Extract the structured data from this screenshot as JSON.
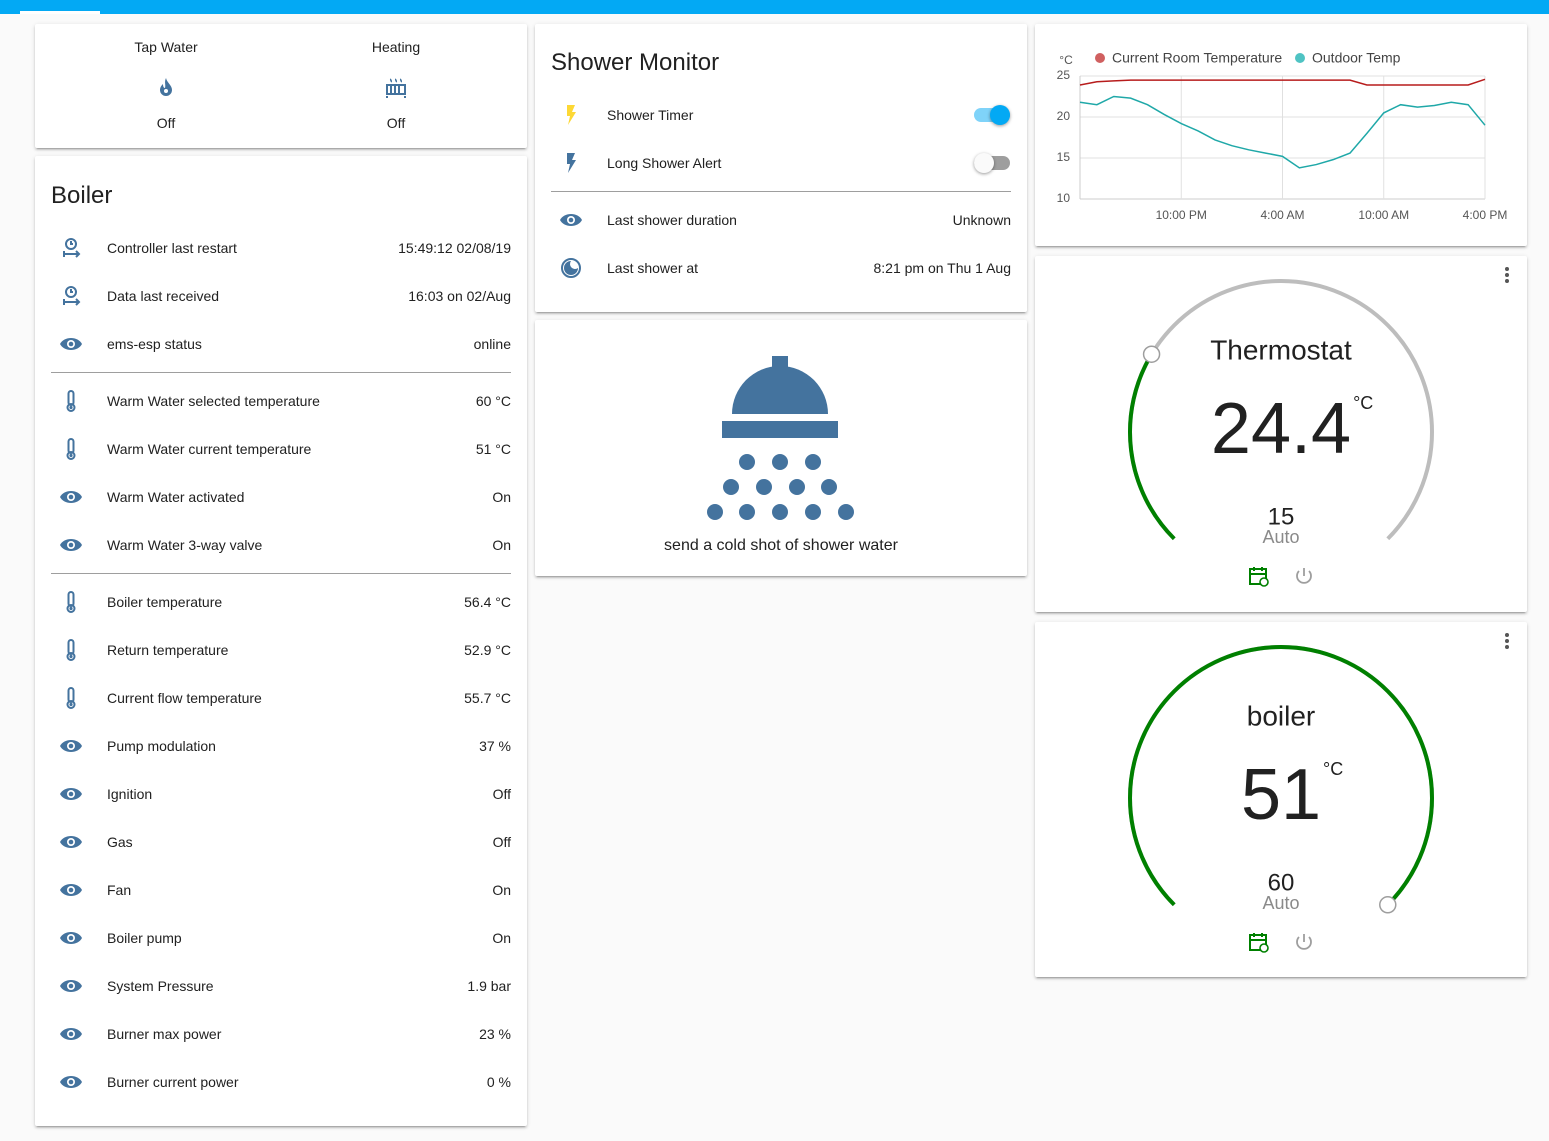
{
  "header": {
    "entities": [
      {
        "name": "Tap Water",
        "state": "Off"
      },
      {
        "name": "Heating",
        "state": "Off"
      }
    ]
  },
  "boiler": {
    "title": "Boiler",
    "sections": [
      [
        {
          "label": "Controller last restart",
          "value": "15:49:12 02/08/19"
        },
        {
          "label": "Data last received",
          "value": "16:03 on 02/Aug"
        },
        {
          "label": "ems-esp status",
          "value": "online"
        }
      ],
      [
        {
          "label": "Warm Water selected temperature",
          "value": "60 °C"
        },
        {
          "label": "Warm Water current temperature",
          "value": "51 °C"
        },
        {
          "label": "Warm Water activated",
          "value": "On"
        },
        {
          "label": "Warm Water 3-way valve",
          "value": "On"
        }
      ],
      [
        {
          "label": "Boiler temperature",
          "value": "56.4 °C"
        },
        {
          "label": "Return temperature",
          "value": "52.9 °C"
        },
        {
          "label": "Current flow temperature",
          "value": "55.7 °C"
        },
        {
          "label": "Pump modulation",
          "value": "37 %"
        },
        {
          "label": "Ignition",
          "value": "Off"
        },
        {
          "label": "Gas",
          "value": "Off"
        },
        {
          "label": "Fan",
          "value": "On"
        },
        {
          "label": "Boiler pump",
          "value": "On"
        },
        {
          "label": "System Pressure",
          "value": "1.9 bar"
        },
        {
          "label": "Burner max power",
          "value": "23 %"
        },
        {
          "label": "Burner current power",
          "value": "0 %"
        }
      ]
    ]
  },
  "shower": {
    "title": "Shower Monitor",
    "toggles": [
      {
        "name": "Shower Timer",
        "on": true
      },
      {
        "name": "Long Shower Alert",
        "on": false
      }
    ],
    "rows": [
      {
        "label": "Last shower duration",
        "value": "Unknown"
      },
      {
        "label": "Last shower at",
        "value": "8:21 pm on Thu 1 Aug"
      }
    ]
  },
  "button": {
    "label": "send a cold shot of shower water"
  },
  "chart_data": {
    "type": "line",
    "y_label": "°C",
    "categories": [
      null,
      null,
      null,
      null,
      null,
      null,
      "10:00 PM",
      null,
      null,
      null,
      null,
      null,
      "4:00 AM",
      null,
      null,
      null,
      null,
      null,
      "10:00 AM",
      null,
      null,
      null,
      null,
      null,
      "4:00 PM"
    ],
    "series": [
      {
        "name": "Current Room Temperature",
        "color": "#b71c1c",
        "legend_color": "#d06060",
        "values": [
          23.9,
          24.3,
          24.4,
          24.5,
          24.5,
          24.5,
          24.5,
          24.5,
          24.5,
          24.5,
          24.5,
          24.5,
          24.5,
          24.5,
          24.5,
          24.5,
          24.5,
          23.9,
          23.9,
          23.9,
          23.9,
          23.9,
          23.9,
          23.9,
          24.6
        ]
      },
      {
        "name": "Outdoor Temp",
        "color": "#1fa8a8",
        "legend_color": "#4fc3c3",
        "values": [
          21.8,
          21.5,
          22.5,
          22.3,
          21.5,
          20.3,
          19.2,
          18.3,
          17.2,
          16.5,
          16.0,
          15.6,
          15.2,
          13.8,
          14.2,
          14.8,
          15.6,
          18.0,
          20.5,
          21.5,
          21.2,
          21.4,
          21.8,
          21.5,
          19.0
        ]
      }
    ],
    "ylim": [
      10,
      25
    ],
    "yticks": [
      10,
      15,
      20,
      25
    ],
    "grid": true,
    "legend": "top"
  },
  "thermostats": [
    {
      "name": "Thermostat",
      "current": 24.4,
      "unit": "°C",
      "target": 15,
      "mode": "Auto"
    },
    {
      "name": "boiler",
      "current": 51,
      "unit": "°C",
      "target": 60,
      "mode": "Auto"
    }
  ]
}
